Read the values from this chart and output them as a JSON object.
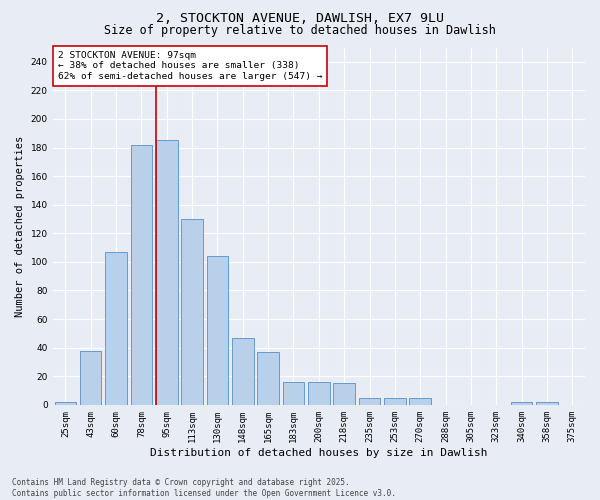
{
  "title1": "2, STOCKTON AVENUE, DAWLISH, EX7 9LU",
  "title2": "Size of property relative to detached houses in Dawlish",
  "xlabel": "Distribution of detached houses by size in Dawlish",
  "ylabel": "Number of detached properties",
  "categories": [
    "25sqm",
    "43sqm",
    "60sqm",
    "78sqm",
    "95sqm",
    "113sqm",
    "130sqm",
    "148sqm",
    "165sqm",
    "183sqm",
    "200sqm",
    "218sqm",
    "235sqm",
    "253sqm",
    "270sqm",
    "288sqm",
    "305sqm",
    "323sqm",
    "340sqm",
    "358sqm",
    "375sqm"
  ],
  "values": [
    2,
    38,
    107,
    182,
    185,
    130,
    104,
    47,
    37,
    16,
    16,
    15,
    5,
    5,
    5,
    0,
    0,
    0,
    2,
    2,
    0
  ],
  "bar_color": "#b8d0ea",
  "bar_edge_color": "#6699cc",
  "background_color": "#e8ecf5",
  "grid_color": "#ffffff",
  "vline_color": "#cc0000",
  "vline_x_index": 4,
  "annotation_text": "2 STOCKTON AVENUE: 97sqm\n← 38% of detached houses are smaller (338)\n62% of semi-detached houses are larger (547) →",
  "annotation_box_color": "#ffffff",
  "annotation_box_edge_color": "#cc0000",
  "footer_text": "Contains HM Land Registry data © Crown copyright and database right 2025.\nContains public sector information licensed under the Open Government Licence v3.0.",
  "ylim": [
    0,
    250
  ],
  "yticks": [
    0,
    20,
    40,
    60,
    80,
    100,
    120,
    140,
    160,
    180,
    200,
    220,
    240
  ],
  "title1_fontsize": 9.5,
  "title2_fontsize": 8.5,
  "xlabel_fontsize": 8,
  "ylabel_fontsize": 7.5,
  "tick_fontsize": 6.5,
  "annotation_fontsize": 6.8,
  "footer_fontsize": 5.5
}
